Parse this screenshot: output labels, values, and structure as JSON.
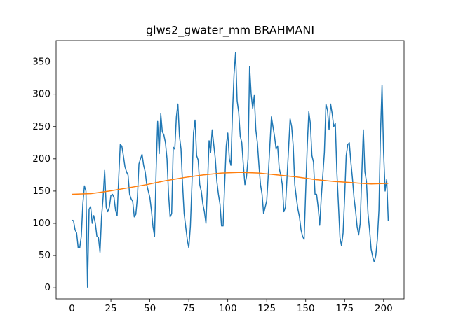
{
  "chart_data": {
    "type": "line",
    "title": "glws2_gwater_mm BRAHMANI",
    "xlim": [
      -10.15,
      213.15
    ],
    "xticks": [
      0,
      25,
      50,
      75,
      100,
      125,
      150,
      175,
      200
    ],
    "ylim": [
      -17.2,
      383.2
    ],
    "yticks": [
      0,
      50,
      100,
      150,
      200,
      250,
      300,
      350
    ],
    "series": [
      {
        "color": "#1f77b4",
        "x": [
          0,
          1,
          2,
          3,
          4,
          5,
          6,
          7,
          8,
          9,
          10,
          11,
          12,
          13,
          14,
          15,
          16,
          17,
          18,
          19,
          20,
          21,
          22,
          23,
          24,
          25,
          26,
          27,
          28,
          29,
          30,
          31,
          32,
          33,
          34,
          35,
          36,
          37,
          38,
          39,
          40,
          41,
          42,
          43,
          44,
          45,
          46,
          47,
          48,
          49,
          50,
          51,
          52,
          53,
          54,
          55,
          56,
          57,
          58,
          59,
          60,
          61,
          62,
          63,
          64,
          65,
          66,
          67,
          68,
          69,
          70,
          71,
          72,
          73,
          74,
          75,
          76,
          77,
          78,
          79,
          80,
          81,
          82,
          83,
          84,
          85,
          86,
          87,
          88,
          89,
          90,
          91,
          92,
          93,
          94,
          95,
          96,
          97,
          98,
          99,
          100,
          101,
          102,
          103,
          104,
          105,
          106,
          107,
          108,
          109,
          110,
          111,
          112,
          113,
          114,
          115,
          116,
          117,
          118,
          119,
          120,
          121,
          122,
          123,
          124,
          125,
          126,
          127,
          128,
          129,
          130,
          131,
          132,
          133,
          134,
          135,
          136,
          137,
          138,
          139,
          140,
          141,
          142,
          143,
          144,
          145,
          146,
          147,
          148,
          149,
          150,
          151,
          152,
          153,
          154,
          155,
          156,
          157,
          158,
          159,
          160,
          161,
          162,
          163,
          164,
          165,
          166,
          167,
          168,
          169,
          170,
          171,
          172,
          173,
          174,
          175,
          176,
          177,
          178,
          179,
          180,
          181,
          182,
          183,
          184,
          185,
          186,
          187,
          188,
          189,
          190,
          191,
          192,
          193,
          194,
          195,
          196,
          197,
          198,
          199,
          200,
          201,
          202,
          203
        ],
        "values": [
          105,
          104,
          90,
          85,
          62,
          62,
          80,
          130,
          158,
          150,
          1,
          122,
          126,
          100,
          112,
          100,
          80,
          78,
          55,
          110,
          140,
          182,
          125,
          118,
          125,
          143,
          145,
          140,
          120,
          112,
          170,
          222,
          220,
          205,
          188,
          180,
          175,
          145,
          138,
          134,
          110,
          114,
          140,
          192,
          200,
          207,
          190,
          180,
          160,
          150,
          140,
          120,
          95,
          80,
          180,
          258,
          208,
          270,
          242,
          237,
          225,
          200,
          145,
          110,
          115,
          218,
          215,
          265,
          285,
          235,
          215,
          160,
          115,
          95,
          75,
          62,
          95,
          160,
          240,
          260,
          205,
          198,
          160,
          150,
          130,
          118,
          100,
          160,
          228,
          210,
          245,
          222,
          200,
          165,
          145,
          130,
          96,
          96,
          160,
          220,
          240,
          200,
          190,
          270,
          330,
          365,
          290,
          272,
          235,
          225,
          190,
          160,
          172,
          200,
          343,
          300,
          278,
          298,
          245,
          225,
          190,
          160,
          145,
          115,
          125,
          135,
          175,
          220,
          265,
          250,
          235,
          215,
          220,
          185,
          175,
          160,
          118,
          125,
          170,
          215,
          262,
          250,
          220,
          160,
          140,
          122,
          110,
          90,
          80,
          75,
          150,
          220,
          273,
          255,
          205,
          195,
          145,
          145,
          125,
          97,
          140,
          175,
          210,
          285,
          275,
          245,
          285,
          270,
          250,
          255,
          180,
          130,
          78,
          65,
          85,
          140,
          205,
          222,
          225,
          195,
          170,
          140,
          120,
          95,
          82,
          100,
          175,
          245,
          180,
          165,
          115,
          90,
          60,
          48,
          40,
          50,
          75,
          120,
          240,
          314,
          210,
          150,
          168,
          104
        ]
      },
      {
        "color": "#ff7f0e",
        "x": [
          0,
          12,
          24,
          36,
          48,
          60,
          72,
          84,
          96,
          108,
          120,
          132,
          144,
          156,
          168,
          180,
          192,
          203
        ],
        "values": [
          145,
          146,
          150,
          155,
          160,
          166,
          171,
          175,
          178,
          179,
          178,
          175,
          172,
          168,
          165,
          163,
          161,
          162
        ]
      }
    ]
  }
}
